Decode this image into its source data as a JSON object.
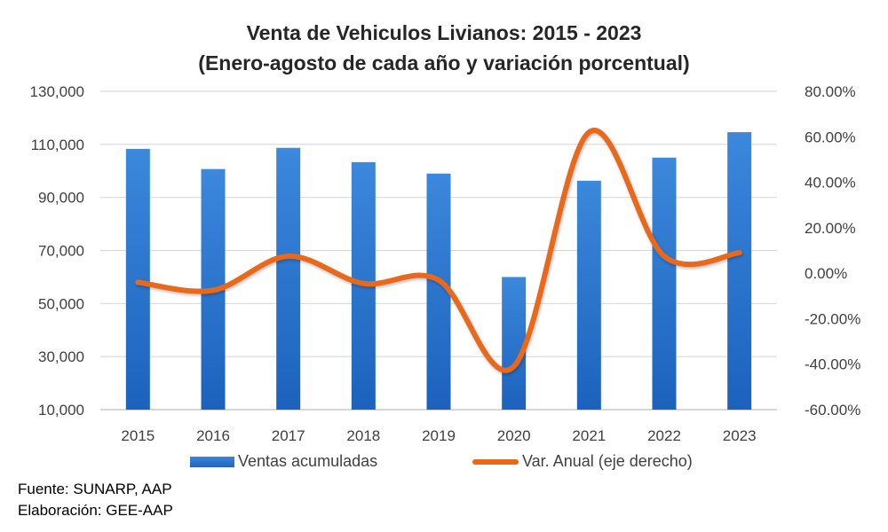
{
  "chart_data": {
    "type": "bar",
    "title": "Venta de Vehiculos Livianos: 2015 - 2023",
    "subtitle": "(Enero-agosto de cada año y variación porcentual)",
    "xlabel": "",
    "ylabel": "",
    "categories": [
      "2015",
      "2016",
      "2017",
      "2018",
      "2019",
      "2020",
      "2021",
      "2022",
      "2023"
    ],
    "series": [
      {
        "name": "Ventas acumuladas",
        "type": "bar",
        "axis": "left",
        "color": "#2f78d2",
        "values": [
          108300,
          100700,
          108700,
          103300,
          99000,
          60000,
          96300,
          105000,
          114600
        ]
      },
      {
        "name": "Var. Anual (eje derecho)",
        "type": "line",
        "smooth": true,
        "axis": "right",
        "color": "#e8681a",
        "values": [
          -4.0,
          -7.5,
          7.5,
          -4.5,
          -3.0,
          -41.0,
          62.0,
          7.5,
          9.0
        ]
      }
    ],
    "y_left": {
      "ylim": [
        10000,
        130000
      ],
      "ticks": [
        130000,
        110000,
        90000,
        70000,
        50000,
        30000,
        10000
      ],
      "tick_labels": [
        "130,000",
        "110,000",
        "90,000",
        "70,000",
        "50,000",
        "30,000",
        "10,000"
      ]
    },
    "y_right": {
      "ylim": [
        -60,
        80
      ],
      "ticks": [
        80,
        60,
        40,
        20,
        0,
        -20,
        -40,
        -60
      ],
      "tick_labels": [
        "80.00%",
        "60.00%",
        "40.00%",
        "20.00%",
        "0.00%",
        "-20.00%",
        "-40.00%",
        "-60.00%"
      ]
    },
    "grid": true,
    "legend": "bottom-center"
  },
  "legend": {
    "bars_label": "Ventas acumuladas",
    "line_label": "Var. Anual (eje derecho)"
  },
  "footer": {
    "source": "Fuente: SUNARP, AAP",
    "credit": "Elaboración: GEE-AAP"
  }
}
